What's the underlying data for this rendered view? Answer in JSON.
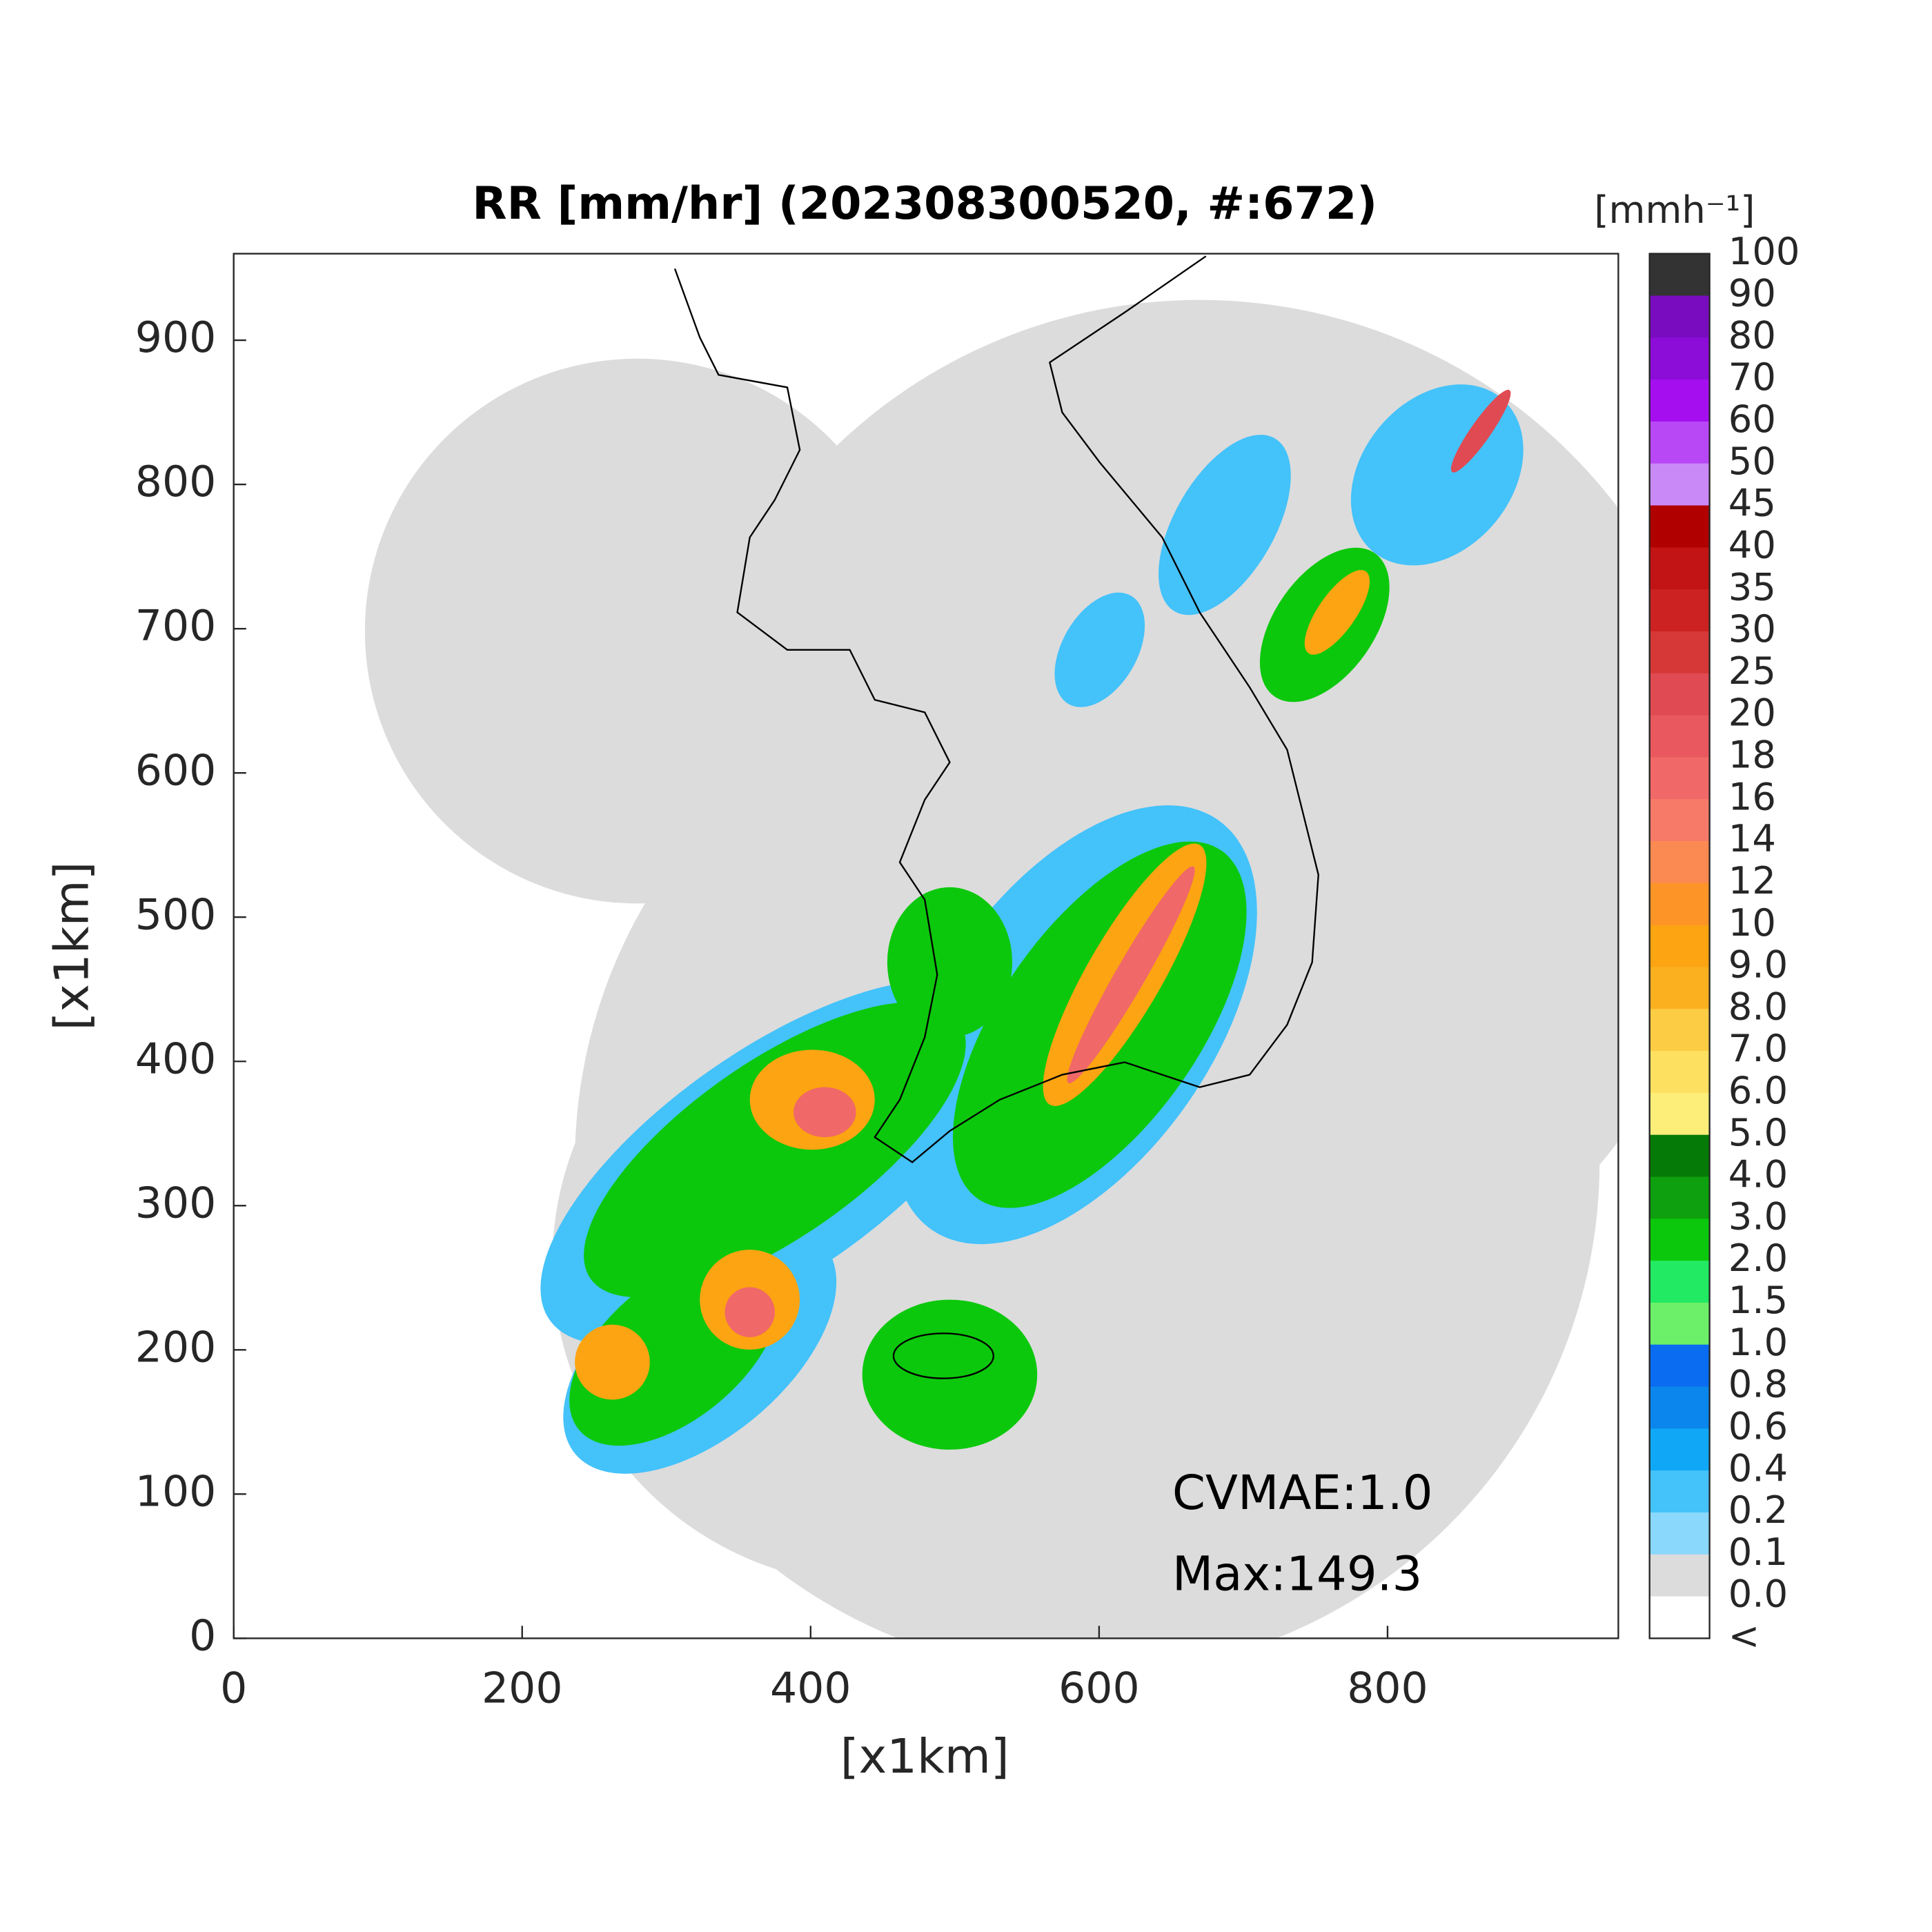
{
  "chart_data": {
    "type": "map",
    "title": "RR [mm/hr] (202308300520, #:672)",
    "x_label": "[x1km]",
    "y_label": "[x1km]",
    "xlim": [
      0,
      960
    ],
    "ylim": [
      0,
      960
    ],
    "xticks": [
      0,
      200,
      400,
      600,
      800
    ],
    "yticks": [
      0,
      100,
      200,
      300,
      400,
      500,
      600,
      700,
      800,
      900
    ],
    "annotations": [
      "CVMAE:1.0",
      "Max:149.3"
    ],
    "colorbar": {
      "unit_label": "[mmh⁻¹]",
      "labels": [
        "100",
        "90",
        "80",
        "70",
        "60",
        "50",
        "45",
        "40",
        "35",
        "30",
        "25",
        "20",
        "18",
        "16",
        "14",
        "12",
        "10",
        "9.0",
        "8.0",
        "7.0",
        "6.0",
        "5.0",
        "4.0",
        "3.0",
        "2.0",
        "1.5",
        "1.0",
        "0.8",
        "0.6",
        "0.4",
        "0.2",
        "0.1",
        "0.0",
        "<"
      ],
      "colors": [
        "#333333",
        "#7a0cc0",
        "#8c0cd8",
        "#a50ff0",
        "#b848f5",
        "#c98af8",
        "#b00000",
        "#c21414",
        "#cc2222",
        "#d63838",
        "#e04a52",
        "#e8585e",
        "#f06868",
        "#f77a68",
        "#fb8a52",
        "#fc9428",
        "#fca412",
        "#fbb020",
        "#fccc44",
        "#fde060",
        "#fdee7a",
        "#067a06",
        "#0ea00e",
        "#0cc80c",
        "#22ea62",
        "#6cf06a",
        "#0a6cf0",
        "#0a86ec",
        "#10a8f6",
        "#44c2fa",
        "#8ad8fc",
        "#dcdcdc",
        "#ffffff"
      ]
    }
  }
}
